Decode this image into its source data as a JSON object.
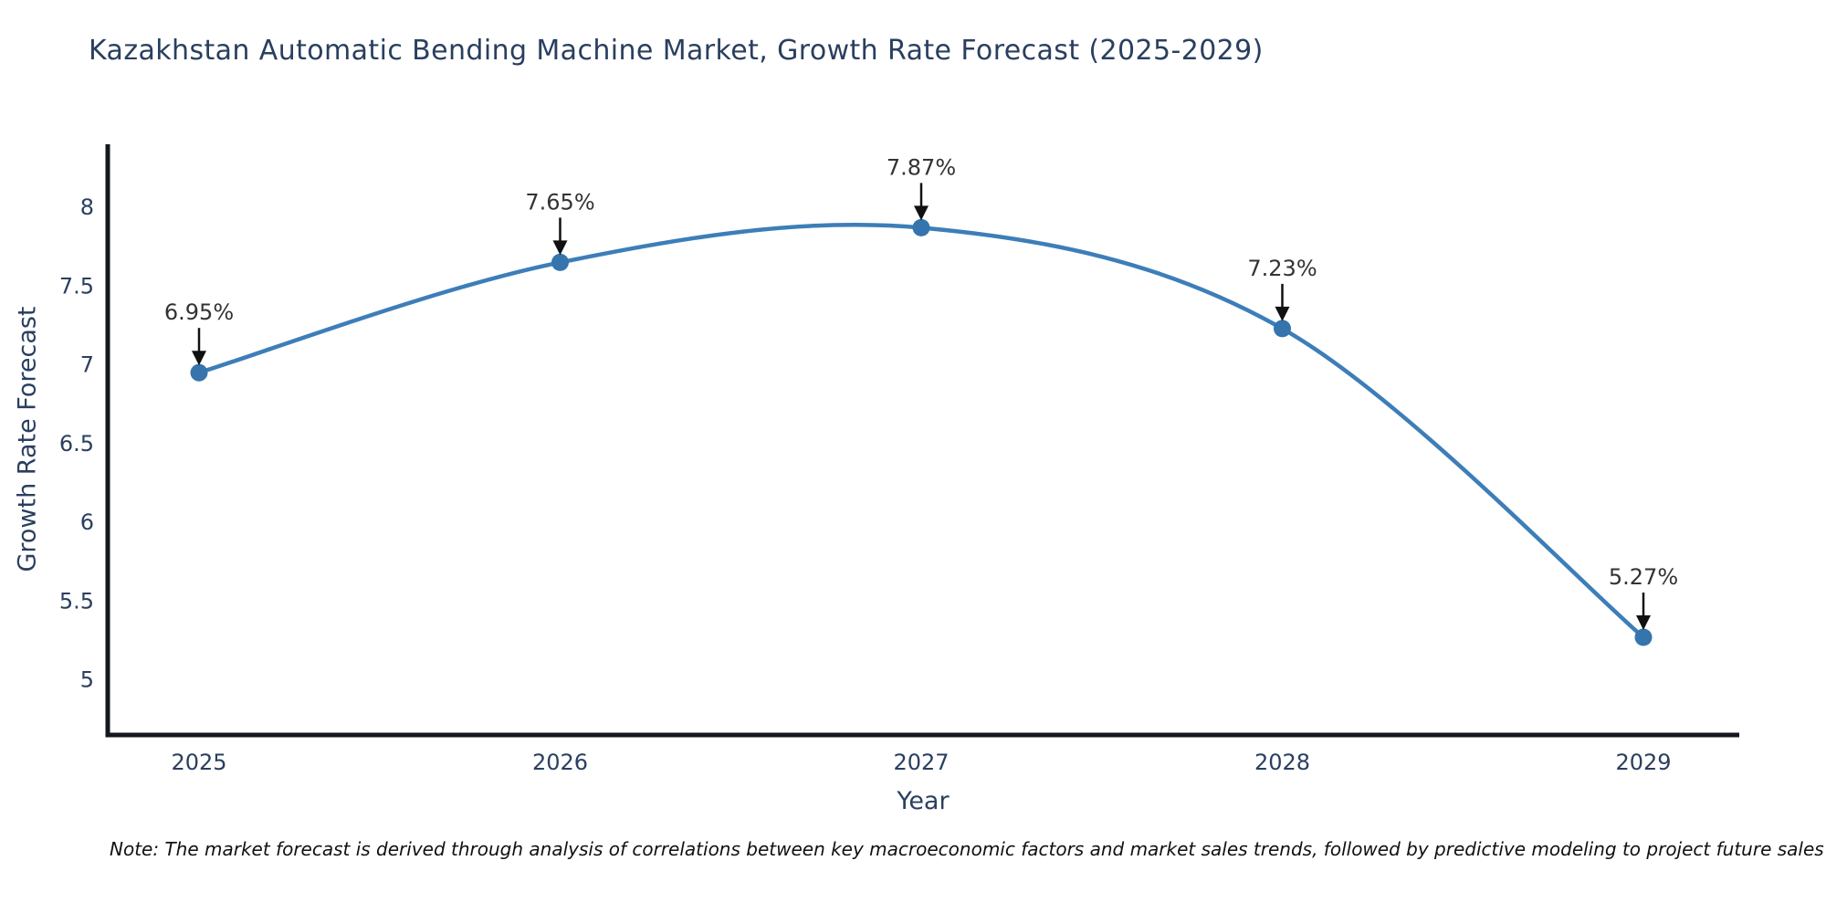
{
  "chart_data": {
    "type": "line",
    "title": "Kazakhstan Automatic Bending Machine Market, Growth Rate Forecast (2025-2029)",
    "xlabel": "Year",
    "ylabel": "Growth Rate Forecast",
    "categories": [
      "2025",
      "2026",
      "2027",
      "2028",
      "2029"
    ],
    "values": [
      6.95,
      7.65,
      7.87,
      7.23,
      5.27
    ],
    "point_labels": [
      "6.95%",
      "7.65%",
      "7.87%",
      "7.23%",
      "5.27%"
    ],
    "yticks": [
      "5",
      "5.5",
      "6",
      "6.5",
      "7",
      "7.5",
      "8"
    ],
    "ytick_values": [
      5,
      5.5,
      6,
      6.5,
      7,
      7.5,
      8
    ],
    "ylim": [
      4.65,
      8.4
    ],
    "grid": false,
    "legend": "none",
    "line_color": "#3d7eb8",
    "marker_color": "#3574ac",
    "axis_color": "#14171f",
    "text_color": "#2a3f5f",
    "annotation_text_color": "#333333",
    "annotation_arrow_color": "#111111",
    "note": "Note: The market forecast is derived through analysis of correlations between key macroeconomic factors and market sales trends, followed by predictive modeling to project future sales"
  }
}
